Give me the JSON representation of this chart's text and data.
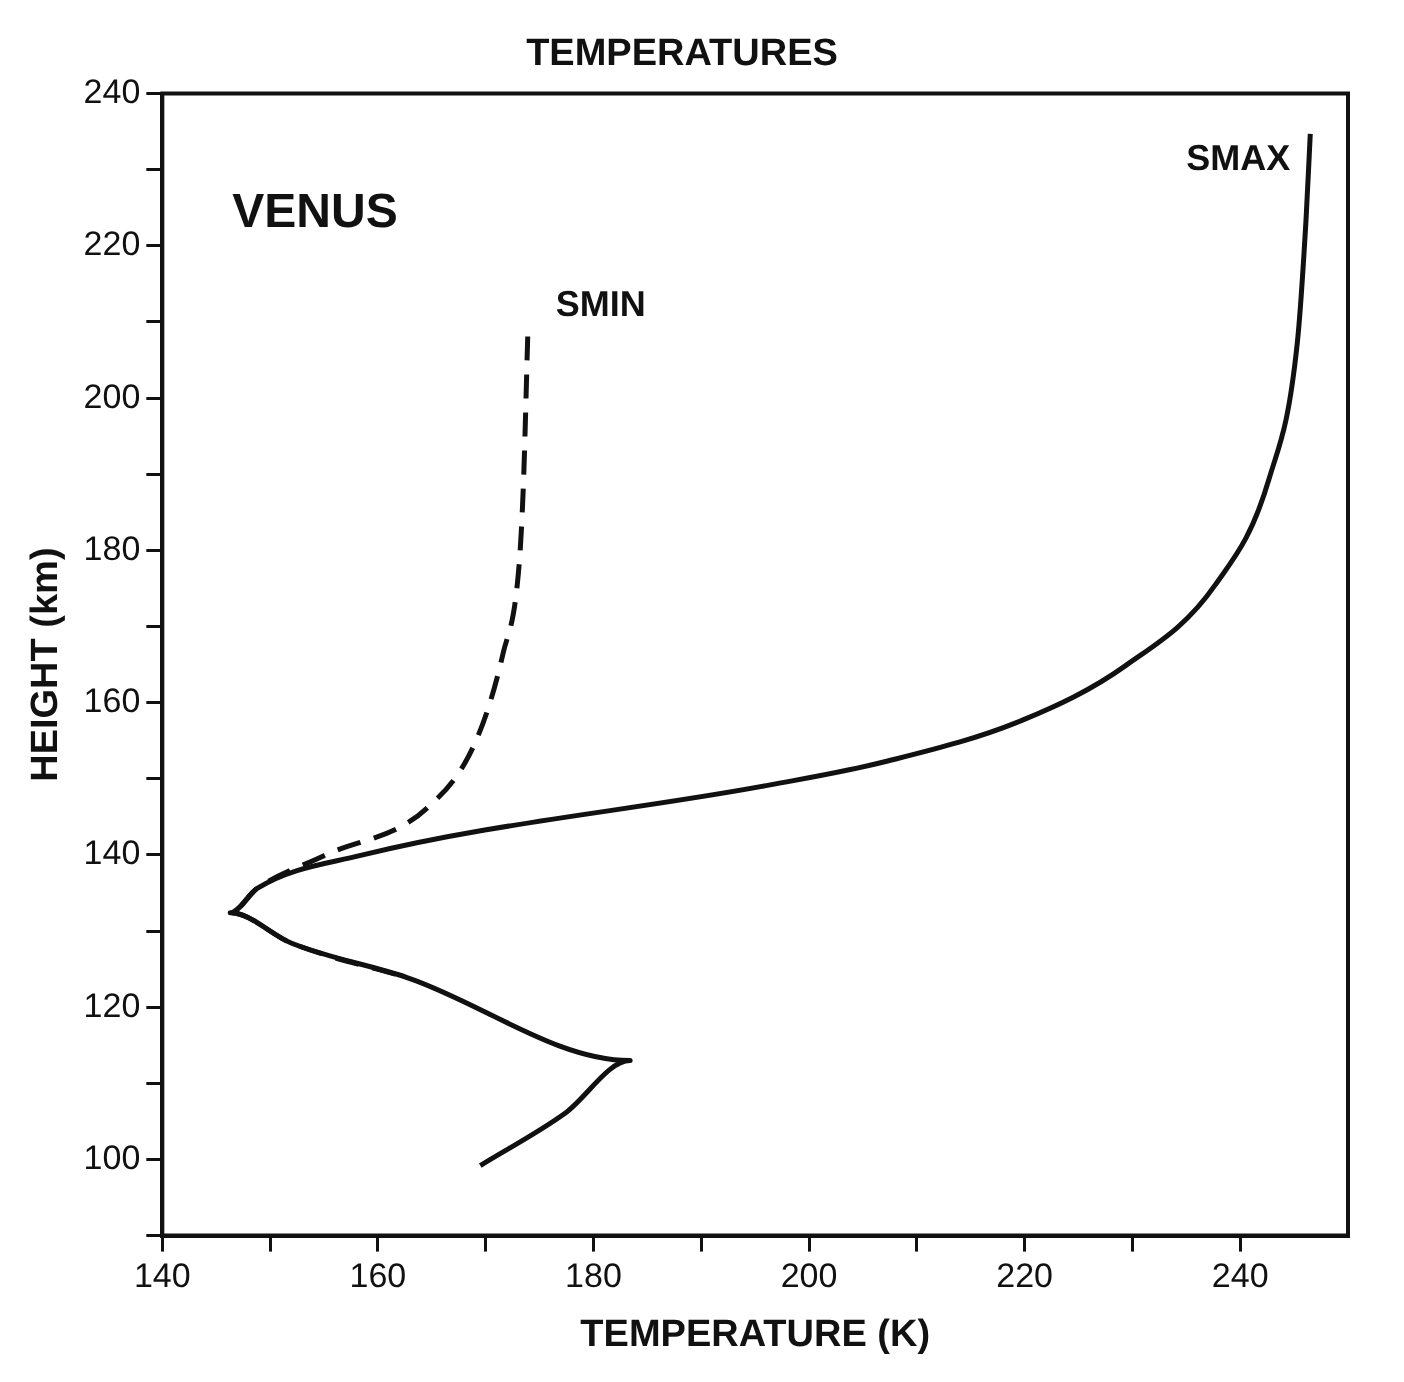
{
  "chart_data": {
    "type": "line",
    "title": "TEMPERATURES",
    "xlabel": "TEMPERATURE (K)",
    "ylabel": "HEIGHT (km)",
    "annotations": [
      "VENUS"
    ],
    "series": [
      {
        "name": "SMAX",
        "color": "#111111",
        "line_style": "solid",
        "x": [
          169.5,
          177.3,
          183.4,
          162.7,
          152,
          146.3,
          148.8,
          158.3,
          196.4,
          207.2,
          219.8,
          229.3,
          237.7,
          242.7,
          245.3,
          246.1,
          246.5
        ],
        "values": [
          99.2,
          106,
          113,
          123.9,
          128.4,
          132.4,
          135.6,
          139.9,
          149.2,
          152.3,
          157.7,
          164.8,
          175.5,
          189.5,
          207.3,
          223.3,
          234.7
        ]
      },
      {
        "name": "SMIN",
        "color": "#111111",
        "line_style": "dashed",
        "x": [
          173.9,
          173.5,
          173.1,
          171.6,
          169.1,
          164.6,
          155,
          148.8,
          146.3,
          152,
          162.7
        ],
        "values": [
          208.1,
          188.7,
          178.1,
          166.4,
          155,
          146.2,
          139.9,
          135.6,
          132.4,
          128.4,
          123.9
        ]
      }
    ],
    "xlim": [
      140,
      250
    ],
    "xticks": [
      140,
      {
        "value": 150,
        "label": null
      },
      160,
      {
        "value": 170,
        "label": null
      },
      180,
      {
        "value": 190,
        "label": null
      },
      200,
      {
        "value": 210,
        "label": null
      },
      220,
      {
        "value": 230,
        "label": null
      },
      240
    ],
    "ylim": [
      90,
      240
    ],
    "yticks": [
      {
        "value": 90,
        "label": null
      },
      100,
      {
        "value": 110,
        "label": null
      },
      120,
      {
        "value": 130,
        "label": null
      },
      140,
      {
        "value": 150,
        "label": null
      },
      160,
      {
        "value": 170,
        "label": null
      },
      180,
      {
        "value": 190,
        "label": null
      },
      200,
      {
        "value": 210,
        "label": null
      },
      220,
      {
        "value": 230,
        "label": null
      },
      240
    ],
    "grid": false,
    "legend": false,
    "marker": "none"
  }
}
